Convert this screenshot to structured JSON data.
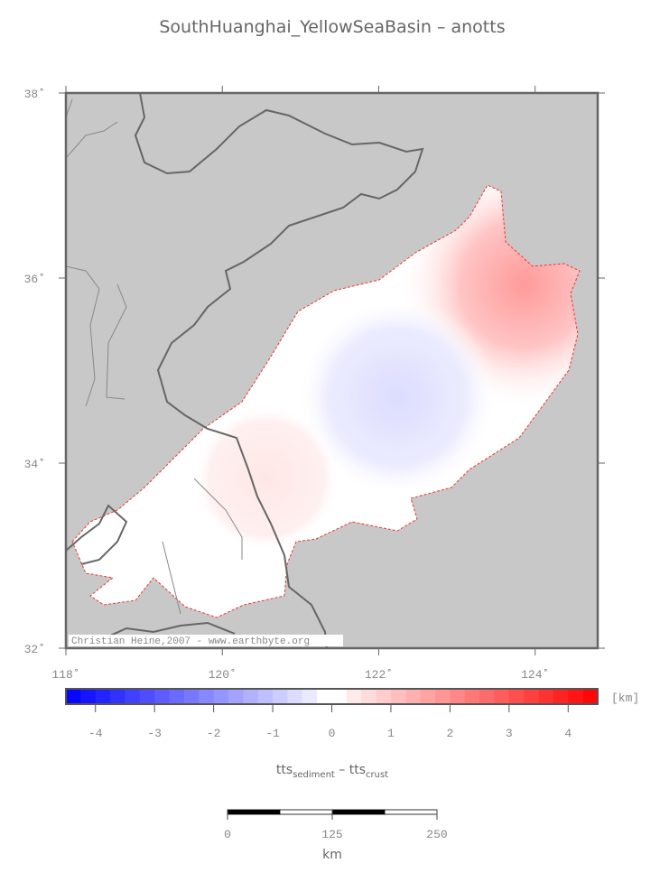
{
  "title": "SouthHuanghai_YellowSeaBasin – anotts",
  "map": {
    "lonlim": [
      118,
      124.8
    ],
    "latlim": [
      32,
      38
    ],
    "lon_ticks": [
      {
        "value": 118,
        "label": "118˚"
      },
      {
        "value": 120,
        "label": "120˚"
      },
      {
        "value": 122,
        "label": "122˚"
      },
      {
        "value": 124,
        "label": "124˚"
      }
    ],
    "lat_ticks": [
      {
        "value": 32,
        "label": "32˚"
      },
      {
        "value": 34,
        "label": "34˚"
      },
      {
        "value": 36,
        "label": "36˚"
      },
      {
        "value": 38,
        "label": "38˚"
      }
    ],
    "credit": "Christian Heine,2007 - www.earthbyte.org"
  },
  "colorbar": {
    "range": [
      -4.5,
      4.5
    ],
    "ticks": [
      -4,
      -3,
      -2,
      -1,
      0,
      1,
      2,
      3,
      4
    ],
    "unit": "[km]"
  },
  "quantity": {
    "left": "tts",
    "left_sub": "sediment",
    "op": " – tts",
    "right_sub": "crust"
  },
  "scale_bar": {
    "range": [
      0,
      250
    ],
    "ticks": [
      0,
      125,
      250
    ],
    "unit": "km"
  }
}
